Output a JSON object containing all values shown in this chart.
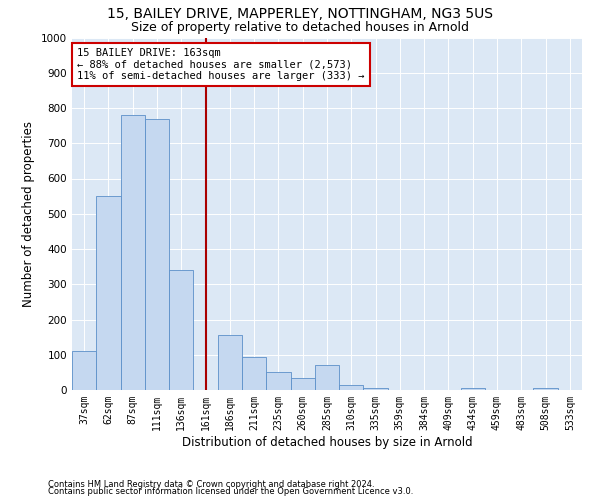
{
  "title": "15, BAILEY DRIVE, MAPPERLEY, NOTTINGHAM, NG3 5US",
  "subtitle": "Size of property relative to detached houses in Arnold",
  "xlabel": "Distribution of detached houses by size in Arnold",
  "ylabel": "Number of detached properties",
  "categories": [
    "37sqm",
    "62sqm",
    "87sqm",
    "111sqm",
    "136sqm",
    "161sqm",
    "186sqm",
    "211sqm",
    "235sqm",
    "260sqm",
    "285sqm",
    "310sqm",
    "335sqm",
    "359sqm",
    "384sqm",
    "409sqm",
    "434sqm",
    "459sqm",
    "483sqm",
    "508sqm",
    "533sqm"
  ],
  "values": [
    110,
    550,
    780,
    770,
    340,
    0,
    155,
    95,
    50,
    35,
    70,
    15,
    5,
    0,
    0,
    0,
    5,
    0,
    0,
    5,
    0
  ],
  "bar_color": "#c5d8f0",
  "bar_edge_color": "#5b8fc9",
  "vline_x_index": 5,
  "vline_color": "#aa0000",
  "ylim": [
    0,
    1000
  ],
  "yticks": [
    0,
    100,
    200,
    300,
    400,
    500,
    600,
    700,
    800,
    900,
    1000
  ],
  "annotation_text": "15 BAILEY DRIVE: 163sqm\n← 88% of detached houses are smaller (2,573)\n11% of semi-detached houses are larger (333) →",
  "annotation_box_color": "#ffffff",
  "annotation_box_edge_color": "#cc0000",
  "footnote1": "Contains HM Land Registry data © Crown copyright and database right 2024.",
  "footnote2": "Contains public sector information licensed under the Open Government Licence v3.0.",
  "plot_bg_color": "#dce8f5",
  "title_fontsize": 10,
  "subtitle_fontsize": 9,
  "tick_fontsize": 7,
  "ylabel_fontsize": 8.5,
  "xlabel_fontsize": 8.5,
  "footnote_fontsize": 6,
  "annotation_fontsize": 7.5
}
